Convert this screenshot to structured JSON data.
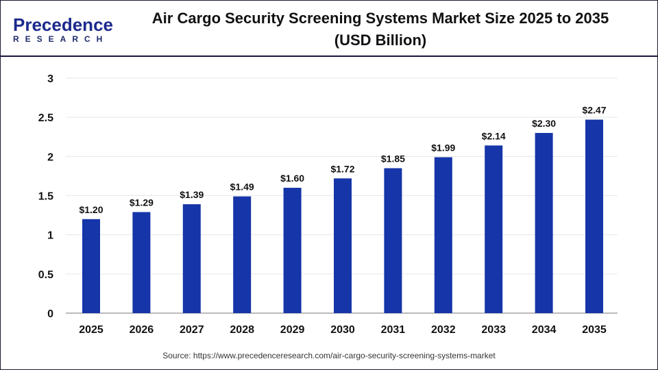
{
  "header": {
    "logo_main": "Precedence",
    "logo_sub": "RESEARCH",
    "title_line1": "Air Cargo Security Screening Systems Market Size 2025 to 2035",
    "title_line2": "(USD Billion)"
  },
  "source": "Source: https://www.precedenceresearch.com/air-cargo-security-screening-systems-market",
  "chart_data": {
    "type": "bar",
    "title": "Air Cargo Security Screening Systems Market Size 2025 to 2035 (USD Billion)",
    "categories": [
      "2025",
      "2026",
      "2027",
      "2028",
      "2029",
      "2030",
      "2031",
      "2032",
      "2033",
      "2034",
      "2035"
    ],
    "values": [
      1.2,
      1.29,
      1.39,
      1.49,
      1.6,
      1.72,
      1.85,
      1.99,
      2.14,
      2.3,
      2.47
    ],
    "data_labels": [
      "$1.20",
      "$1.29",
      "$1.39",
      "$1.49",
      "$1.60",
      "$1.72",
      "$1.85",
      "$1.99",
      "$2.14",
      "$2.30",
      "$2.47"
    ],
    "yticks": [
      "0",
      "0.5",
      "1",
      "1.5",
      "2",
      "2.5",
      "3"
    ],
    "ylim": [
      0,
      3
    ],
    "grid": true,
    "bar_color": "#1535a8"
  }
}
